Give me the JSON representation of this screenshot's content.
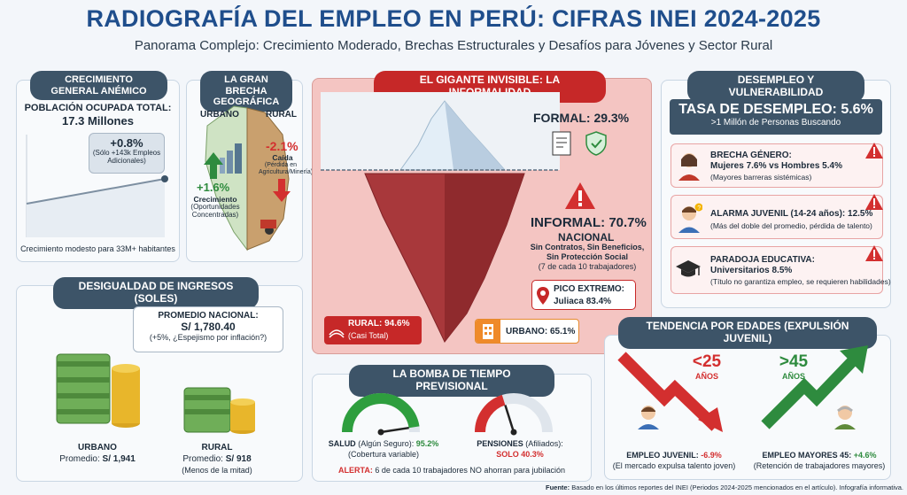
{
  "header": {
    "title": "RADIOGRAFÍA DEL EMPLEO EN PERÚ: CIFRAS INEI 2024-2025",
    "subtitle": "Panorama Complejo: Crecimiento Moderado, Brechas Estructurales y Desafíos para Jóvenes y Sector Rural"
  },
  "growth": {
    "tag": "CRECIMIENTO GENERAL ANÉMICO",
    "pop_label": "POBLACIÓN OCUPADA TOTAL:",
    "pop_value": "17.3 Millones",
    "callout_value": "+0.8%",
    "callout_note": "(Sólo +143k Empleos Adicionales)",
    "footer": "Crecimiento modesto para 33M+ habitantes"
  },
  "geo": {
    "tag": "LA GRAN BRECHA GEOGRÁFICA",
    "urban_label": "URBANO",
    "rural_label": "RURAL",
    "urban_value": "+1.6%",
    "urban_word": "Crecimiento",
    "urban_note": "(Oportunidades Concentradas)",
    "rural_value": "-2.1%",
    "rural_word": "Caída",
    "rural_note": "(Pérdida en Agricultura/Minería)"
  },
  "informal": {
    "tag": "EL GIGANTE INVISIBLE: LA INFORMALIDAD",
    "formal_label": "FORMAL:",
    "formal_value": "29.3%",
    "informal_label": "INFORMAL:",
    "informal_value": "70.7%",
    "informal_sub": "NACIONAL",
    "informal_note1": "Sin Contratos, Sin Beneficios,",
    "informal_note2": "Sin Protección Social",
    "informal_note3": "(7 de cada 10 trabajadores)",
    "peak_label": "PICO EXTREMO:",
    "peak_value": "Juliaca 83.4%",
    "rural_label": "RURAL: 94.6%",
    "rural_note": "(Casi Total)",
    "urban_label": "URBANO: 65.1%"
  },
  "unemployment": {
    "tag": "DESEMPLEO Y VULNERABILIDAD",
    "rate_label": "TASA DE DESEMPLEO: 5.6%",
    "rate_note": ">1 Millón de Personas Buscando",
    "gender_title": "BRECHA GÉNERO:",
    "gender_value": "Mujeres 7.6% vs Hombres 5.4%",
    "gender_note": "(Mayores barreras sistémicas)",
    "youth_title": "ALARMA JUVENIL (14-24 años): 12.5%",
    "youth_note": "(Más del doble del promedio, pérdida de talento)",
    "edu_title": "PARADOJA EDUCATIVA:",
    "edu_value": "Universitarios 8.5%",
    "edu_note": "(Título no garantiza empleo, se requieren habilidades)"
  },
  "income": {
    "tag": "DESIGUALDAD DE INGRESOS (SOLES)",
    "avg_label": "PROMEDIO NACIONAL:",
    "avg_value": "S/ 1,780.40",
    "avg_note": "(+5%, ¿Espejismo por inflación?)",
    "urban_label": "URBANO",
    "urban_prefix": "Promedio:",
    "urban_value": "S/ 1,941",
    "rural_label": "RURAL",
    "rural_prefix": "Promedio:",
    "rural_value": "S/ 918",
    "rural_note": "(Menos de la mitad)"
  },
  "pension": {
    "tag": "LA BOMBA DE TIEMPO PREVISIONAL",
    "health_label": "SALUD",
    "health_desc": "(Algún Seguro):",
    "health_value": "95.2%",
    "health_note": "(Cobertura variable)",
    "health_fraction": 0.952,
    "pension_label": "PENSIONES",
    "pension_desc": "(Afiliados):",
    "pension_value": "SOLO 40.3%",
    "pension_fraction": 0.403,
    "alert_label": "ALERTA:",
    "alert_text": "6 de cada 10 trabajadores NO ahorran para jubilación"
  },
  "age": {
    "tag": "TENDENCIA POR EDADES (EXPULSIÓN JUVENIL)",
    "young_head": "<25",
    "young_unit": "AÑOS",
    "old_head": ">45",
    "old_unit": "AÑOS",
    "young_label": "EMPLEO JUVENIL:",
    "young_value": "-6.9%",
    "young_note": "(El mercado expulsa talento joven)",
    "old_label": "EMPLEO MAYORES 45:",
    "old_value": "+4.6%",
    "old_note": "(Retención de trabajadores mayores)"
  },
  "footer": {
    "source_label": "Fuente:",
    "source_text": "Basado en los últimos reportes del INEI (Periodos 2024-2025 mencionados en el artículo). Infografía informativa."
  },
  "colors": {
    "navy": "#1f4e8c",
    "tag": "#3d5468",
    "red": "#d32f2f",
    "green": "#2e8b3e",
    "iceberg_panel": "#f4c5c2"
  }
}
